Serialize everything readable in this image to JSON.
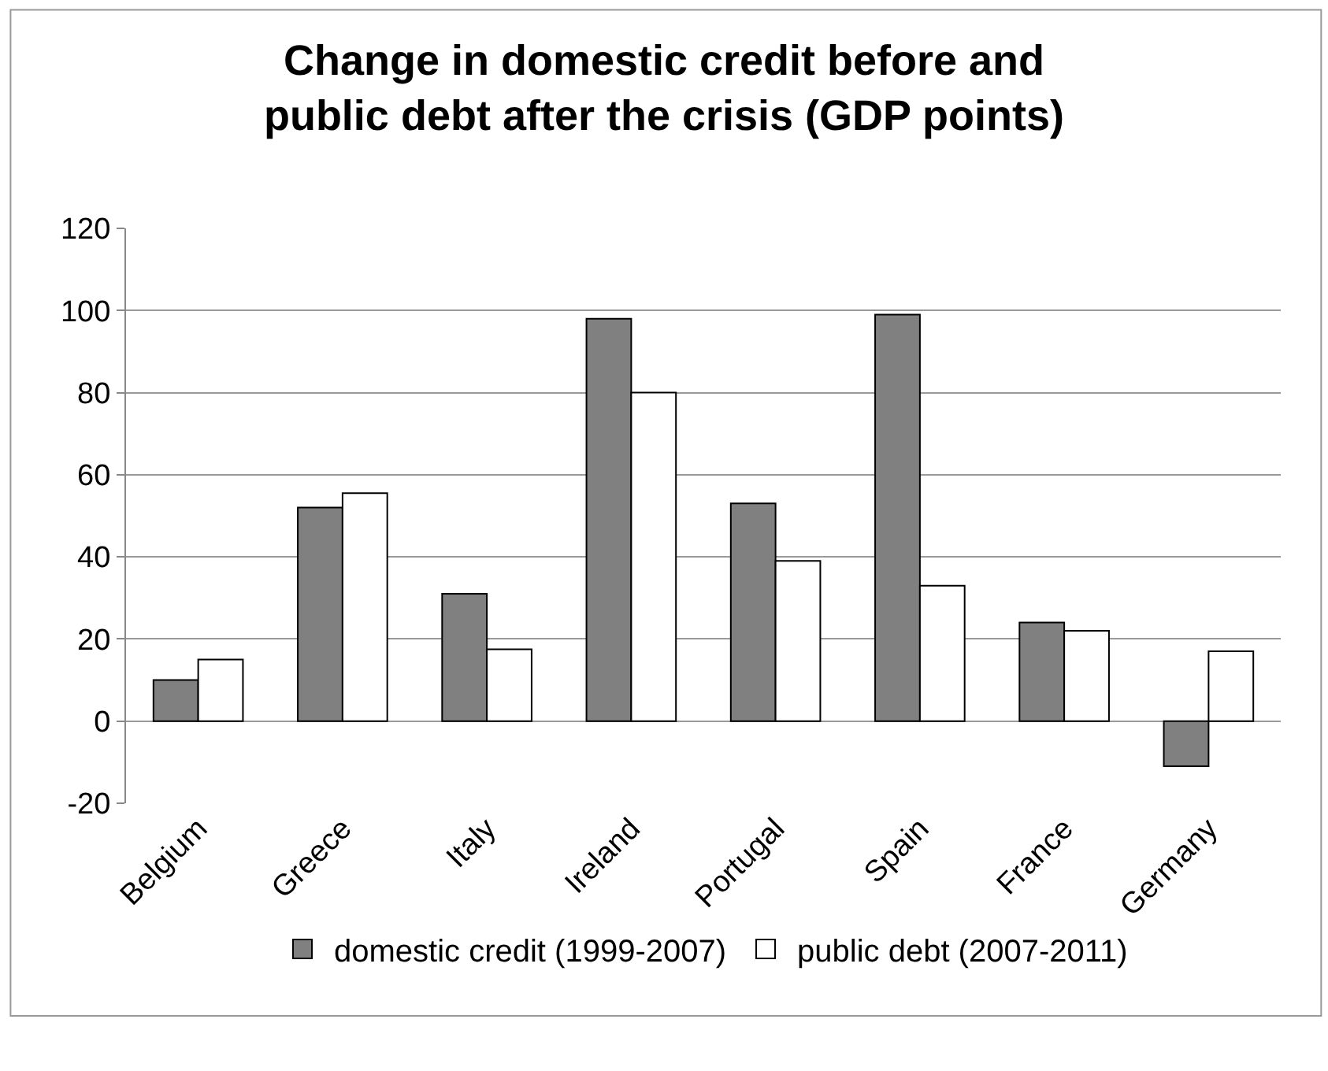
{
  "chart_data": {
    "type": "bar",
    "title": "Change in domestic credit before and\npublic debt after the crisis (GDP points)",
    "categories": [
      "Belgium",
      "Greece",
      "Italy",
      "Ireland",
      "Portugal",
      "Spain",
      "France",
      "Germany"
    ],
    "series": [
      {
        "name": "domestic credit (1999-2007)",
        "color": "#808080",
        "values": [
          10,
          52,
          31,
          98,
          53,
          99,
          24,
          -11
        ]
      },
      {
        "name": "public debt (2007-2011)",
        "color": "#ffffff",
        "values": [
          15,
          55.5,
          17.5,
          80,
          39,
          33,
          22,
          17
        ]
      }
    ],
    "ylim": [
      -20,
      120
    ],
    "yticks": [
      -20,
      0,
      20,
      40,
      60,
      80,
      100,
      120
    ],
    "grid": "y",
    "legend": "bottom"
  }
}
